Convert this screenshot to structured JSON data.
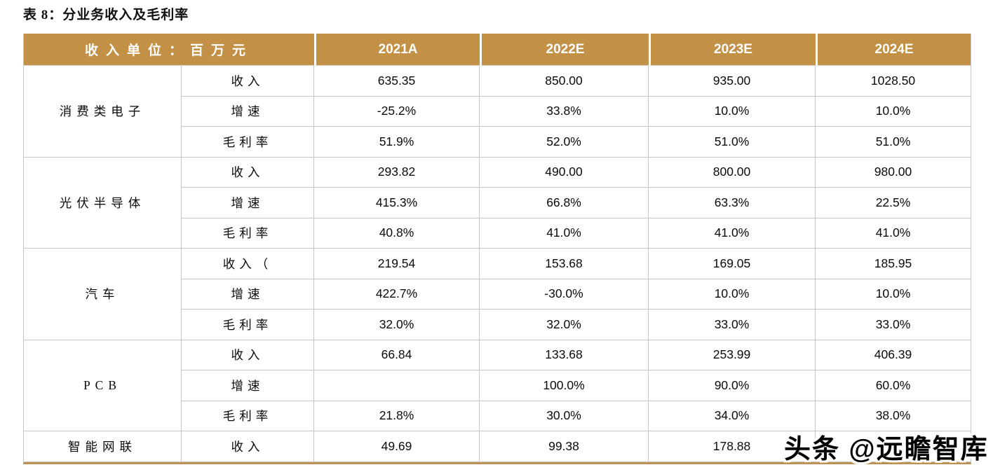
{
  "title": "表 8：分业务收入及毛利率",
  "watermark": "头条 @远瞻智库",
  "colors": {
    "header_bg": "#c29145",
    "header_text": "#ffffff",
    "grid_border": "#c6c6c6",
    "bottom_border": "#c0904e"
  },
  "table": {
    "unit_header": "收入单位：百万元",
    "year_columns": [
      "2021A",
      "2022E",
      "2023E",
      "2024E"
    ],
    "segments": [
      {
        "name": "消费类电子",
        "rows": [
          {
            "metric": "收入",
            "values": [
              "635.35",
              "850.00",
              "935.00",
              "1028.50"
            ]
          },
          {
            "metric": "增速",
            "values": [
              "-25.2%",
              "33.8%",
              "10.0%",
              "10.0%"
            ]
          },
          {
            "metric": "毛利率",
            "values": [
              "51.9%",
              "52.0%",
              "51.0%",
              "51.0%"
            ]
          }
        ]
      },
      {
        "name": "光伏半导体",
        "rows": [
          {
            "metric": "收入",
            "values": [
              "293.82",
              "490.00",
              "800.00",
              "980.00"
            ]
          },
          {
            "metric": "增速",
            "values": [
              "415.3%",
              "66.8%",
              "63.3%",
              "22.5%"
            ]
          },
          {
            "metric": "毛利率",
            "values": [
              "40.8%",
              "41.0%",
              "41.0%",
              "41.0%"
            ]
          }
        ]
      },
      {
        "name": "汽车",
        "rows": [
          {
            "metric": "收入（",
            "values": [
              "219.54",
              "153.68",
              "169.05",
              "185.95"
            ]
          },
          {
            "metric": "增速",
            "values": [
              "422.7%",
              "-30.0%",
              "10.0%",
              "10.0%"
            ]
          },
          {
            "metric": "毛利率",
            "values": [
              "32.0%",
              "32.0%",
              "33.0%",
              "33.0%"
            ]
          }
        ]
      },
      {
        "name": "PCB",
        "rows": [
          {
            "metric": "收入",
            "values": [
              "66.84",
              "133.68",
              "253.99",
              "406.39"
            ]
          },
          {
            "metric": "增速",
            "values": [
              "",
              "100.0%",
              "90.0%",
              "60.0%"
            ]
          },
          {
            "metric": "毛利率",
            "values": [
              "21.8%",
              "30.0%",
              "34.0%",
              "38.0%"
            ]
          }
        ]
      },
      {
        "name": "智能网联",
        "rows": [
          {
            "metric": "收入",
            "values": [
              "49.69",
              "99.38",
              "178.88",
              ""
            ]
          }
        ]
      }
    ]
  }
}
